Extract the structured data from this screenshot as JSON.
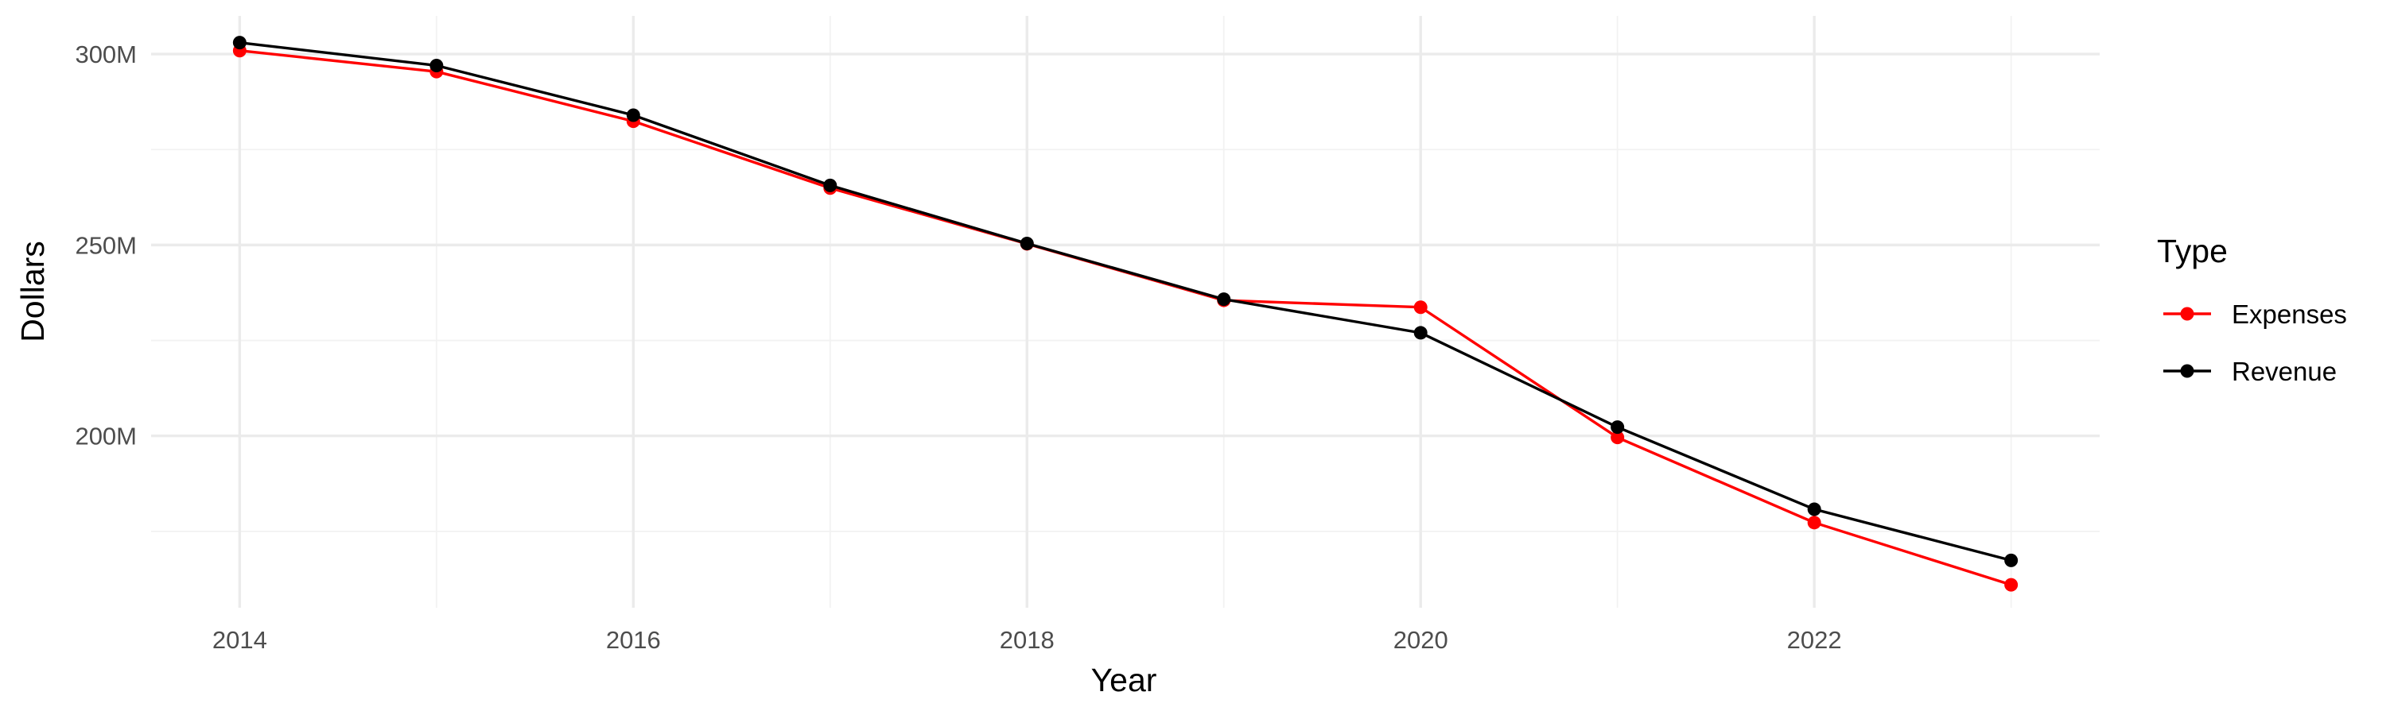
{
  "chart_data": {
    "type": "line",
    "xlabel": "Year",
    "ylabel": "Dollars",
    "x": [
      2014,
      2015,
      2016,
      2017,
      2018,
      2019,
      2020,
      2021,
      2022,
      2023
    ],
    "xlim": [
      2013.55,
      2023.45
    ],
    "ylim": [
      155,
      310
    ],
    "x_ticks": [
      2014,
      2016,
      2018,
      2020,
      2022
    ],
    "x_tick_labels": [
      "2014",
      "2016",
      "2018",
      "2020",
      "2022"
    ],
    "y_ticks": [
      200,
      250,
      300
    ],
    "y_tick_labels": [
      "200M",
      "250M",
      "300M"
    ],
    "y_minor_ticks": [
      175,
      225,
      275
    ],
    "x_minor_ticks": [
      2015,
      2017,
      2019,
      2021,
      2023
    ],
    "grid": true,
    "legend": {
      "title": "Type",
      "position": "right"
    },
    "series": [
      {
        "name": "Expenses",
        "color": "#ff0000",
        "values": [
          300.9,
          295.4,
          282.4,
          264.9,
          250.3,
          235.5,
          233.7,
          199.6,
          177.3,
          161.0
        ]
      },
      {
        "name": "Revenue",
        "color": "#000000",
        "values": [
          303.0,
          297.0,
          284.0,
          265.6,
          250.4,
          235.8,
          227.0,
          202.3,
          180.8,
          167.4
        ]
      }
    ]
  }
}
